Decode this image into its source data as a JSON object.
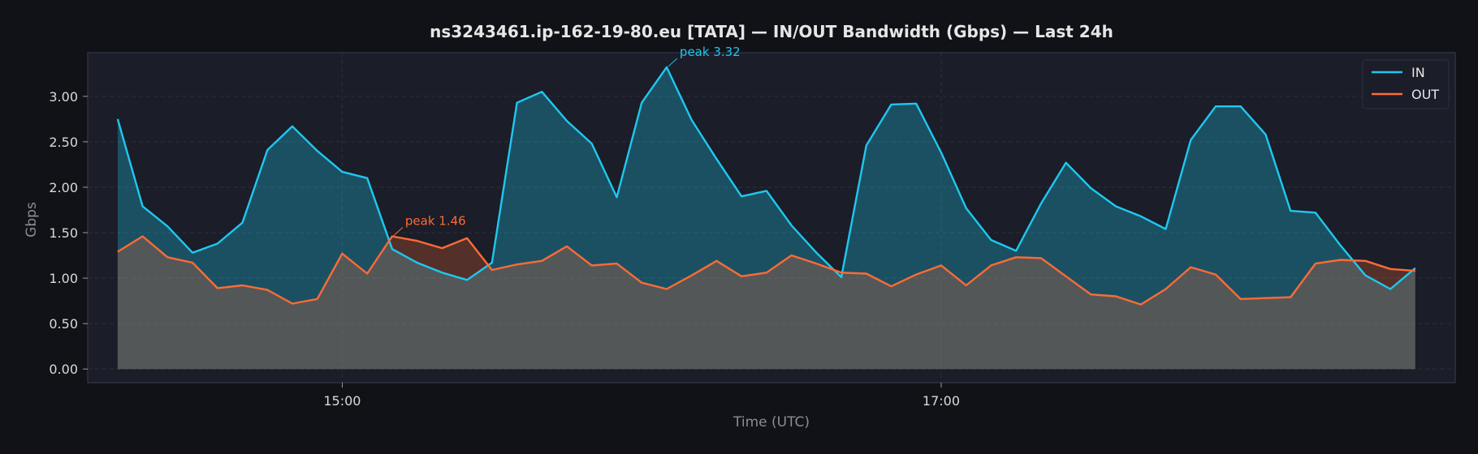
{
  "chart_data": {
    "type": "area",
    "title": "ns3243461.ip-162-19-80.eu [TATA] — IN/OUT Bandwidth (Gbps) — Last 24h",
    "xlabel": "Time (UTC)",
    "ylabel": "Gbps",
    "xlim": [
      "14:09",
      "18:43"
    ],
    "ylim": [
      -0.15,
      3.48
    ],
    "x_ticks": [
      {
        "time": "15:00",
        "label": "15:00"
      },
      {
        "time": "17:00",
        "label": "17:00"
      }
    ],
    "y_ticks": [
      {
        "value": 0.0,
        "label": "0.00"
      },
      {
        "value": 0.5,
        "label": "0.50"
      },
      {
        "value": 1.0,
        "label": "1.00"
      },
      {
        "value": 1.5,
        "label": "1.50"
      },
      {
        "value": 2.0,
        "label": "2.00"
      },
      {
        "value": 2.5,
        "label": "2.50"
      },
      {
        "value": 3.0,
        "label": "3.00"
      }
    ],
    "grid": true,
    "legend_position": "top-right",
    "x": [
      "14:15",
      "14:20",
      "14:25",
      "14:30",
      "14:35",
      "14:40",
      "14:45",
      "14:50",
      "14:55",
      "15:00",
      "15:05",
      "15:10",
      "15:15",
      "15:20",
      "15:25",
      "15:30",
      "15:35",
      "15:40",
      "15:45",
      "15:50",
      "15:55",
      "16:00",
      "16:05",
      "16:10",
      "16:15",
      "16:20",
      "16:25",
      "16:30",
      "16:35",
      "16:40",
      "16:45",
      "16:50",
      "16:55",
      "17:00",
      "17:05",
      "17:10",
      "17:15",
      "17:20",
      "17:25",
      "17:30",
      "17:35",
      "17:40",
      "17:45",
      "17:50",
      "17:55",
      "18:00",
      "18:05",
      "18:10",
      "18:15",
      "18:20",
      "18:25",
      "18:30",
      "18:35",
      "18:40"
    ],
    "series": [
      {
        "name": "IN",
        "color": "#1ec8f0",
        "values": [
          2.75,
          1.79,
          1.57,
          1.28,
          1.38,
          1.61,
          2.41,
          2.67,
          2.4,
          2.17,
          2.1,
          1.32,
          1.17,
          1.06,
          0.98,
          1.17,
          2.93,
          3.05,
          2.73,
          2.48,
          1.89,
          2.93,
          3.32,
          2.74,
          2.31,
          1.9,
          1.96,
          1.58,
          1.28,
          1.01,
          2.46,
          2.91,
          2.92,
          2.38,
          1.77,
          1.42,
          1.3,
          1.82,
          2.27,
          1.99,
          1.79,
          1.68,
          1.54,
          2.52,
          2.89,
          2.89,
          2.58,
          1.74,
          1.72,
          1.36,
          1.03,
          0.88,
          1.11,
          null
        ]
      },
      {
        "name": "OUT",
        "color": "#ff6b35",
        "values": [
          1.29,
          1.46,
          1.23,
          1.17,
          0.89,
          0.92,
          0.87,
          0.72,
          0.77,
          1.27,
          1.05,
          1.46,
          1.41,
          1.33,
          1.44,
          1.09,
          1.15,
          1.19,
          1.35,
          1.14,
          1.16,
          0.95,
          0.88,
          1.03,
          1.19,
          1.02,
          1.06,
          1.25,
          1.16,
          1.06,
          1.05,
          0.91,
          1.04,
          1.14,
          0.92,
          1.14,
          1.23,
          1.22,
          1.02,
          0.82,
          0.8,
          0.71,
          0.88,
          1.12,
          1.04,
          0.77,
          0.78,
          0.79,
          1.16,
          1.2,
          1.19,
          1.1,
          1.08,
          null
        ]
      }
    ],
    "annotations": [
      {
        "series": "IN",
        "x": "16:05",
        "y": 3.32,
        "text": "peak 3.32",
        "color": "#1ec8f0"
      },
      {
        "series": "OUT",
        "x": "15:10",
        "y": 1.46,
        "text": "peak 1.46",
        "color": "#ff6b35"
      }
    ]
  }
}
